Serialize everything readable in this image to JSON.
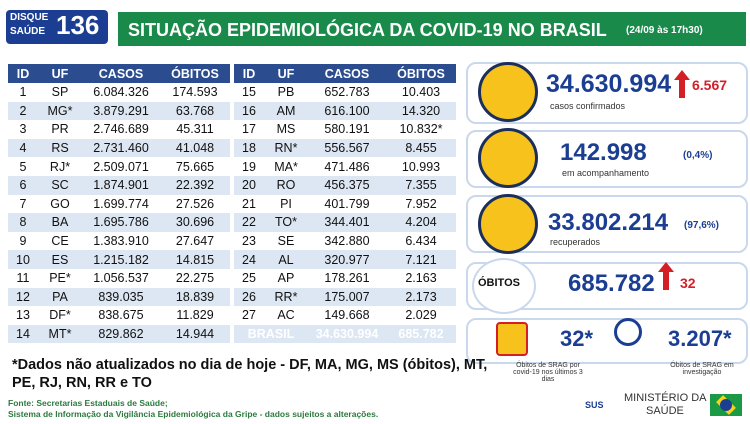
{
  "header": {
    "logo_top": "DISQUE",
    "logo_bottom": "SAÚDE",
    "logo_number": "136",
    "title": "SITUAÇÃO EPIDEMIOLÓGICA DA COVID-19 NO BRASIL",
    "date": "(24/09 às 17h30)"
  },
  "tables": [
    {
      "columns": [
        "ID",
        "UF",
        "CASOS",
        "ÓBITOS"
      ],
      "rows": [
        [
          "1",
          "SP",
          "6.084.326",
          "174.593"
        ],
        [
          "2",
          "MG*",
          "3.879.291",
          "63.768"
        ],
        [
          "3",
          "PR",
          "2.746.689",
          "45.311"
        ],
        [
          "4",
          "RS",
          "2.731.460",
          "41.048"
        ],
        [
          "5",
          "RJ*",
          "2.509.071",
          "75.665"
        ],
        [
          "6",
          "SC",
          "1.874.901",
          "22.392"
        ],
        [
          "7",
          "GO",
          "1.699.774",
          "27.526"
        ],
        [
          "8",
          "BA",
          "1.695.786",
          "30.696"
        ],
        [
          "9",
          "CE",
          "1.383.910",
          "27.647"
        ],
        [
          "10",
          "ES",
          "1.215.182",
          "14.815"
        ],
        [
          "11",
          "PE*",
          "1.056.537",
          "22.275"
        ],
        [
          "12",
          "PA",
          "839.035",
          "18.839"
        ],
        [
          "13",
          "DF*",
          "838.675",
          "11.829"
        ],
        [
          "14",
          "MT*",
          "829.862",
          "14.944"
        ]
      ]
    },
    {
      "columns": [
        "ID",
        "UF",
        "CASOS",
        "ÓBITOS"
      ],
      "rows": [
        [
          "15",
          "PB",
          "652.783",
          "10.403"
        ],
        [
          "16",
          "AM",
          "616.100",
          "14.320"
        ],
        [
          "17",
          "MS",
          "580.191",
          "10.832*"
        ],
        [
          "18",
          "RN*",
          "556.567",
          "8.455"
        ],
        [
          "19",
          "MA*",
          "471.486",
          "10.993"
        ],
        [
          "20",
          "RO",
          "456.375",
          "7.355"
        ],
        [
          "21",
          "PI",
          "401.799",
          "7.952"
        ],
        [
          "22",
          "TO*",
          "344.401",
          "4.204"
        ],
        [
          "23",
          "SE",
          "342.880",
          "6.434"
        ],
        [
          "24",
          "AL",
          "320.977",
          "7.121"
        ],
        [
          "25",
          "AP",
          "178.261",
          "2.163"
        ],
        [
          "26",
          "RR*",
          "175.007",
          "2.173"
        ],
        [
          "27",
          "AC",
          "149.668",
          "2.029"
        ]
      ],
      "total": [
        "BRASIL",
        "34.630.994",
        "685.782"
      ]
    }
  ],
  "cards": {
    "confirmed": {
      "value": "34.630.994",
      "change": "6.567",
      "label": "casos confirmados"
    },
    "monitoring": {
      "value": "142.998",
      "pct": "(0,4%)",
      "label": "em acompanhamento"
    },
    "recovered": {
      "value": "33.802.214",
      "pct": "(97,6%)",
      "label": "recuperados"
    },
    "deaths": {
      "label": "ÓBITOS",
      "value": "685.782",
      "change": "32"
    },
    "srag": {
      "value": "32*",
      "label": "Óbitos de SRAG por covid-19 nos últimos 3 dias"
    },
    "investigation": {
      "value": "3.207*",
      "label": "Óbitos de SRAG em investigação"
    }
  },
  "note": "*Dados não atualizados no dia de hoje - DF, MA, MG, MS (óbitos), MT, PE, RJ, RN, RR e TO",
  "sources": [
    "Fonte: Secretarias Estaduais de Saúde;",
    "Sistema de Informação da Vigilância Epidemiológica da Gripe - dados sujeitos a alterações."
  ],
  "footer": {
    "sus": "SUS",
    "ministry_line1": "MINISTÉRIO DA",
    "ministry_line2": "SAÚDE"
  }
}
